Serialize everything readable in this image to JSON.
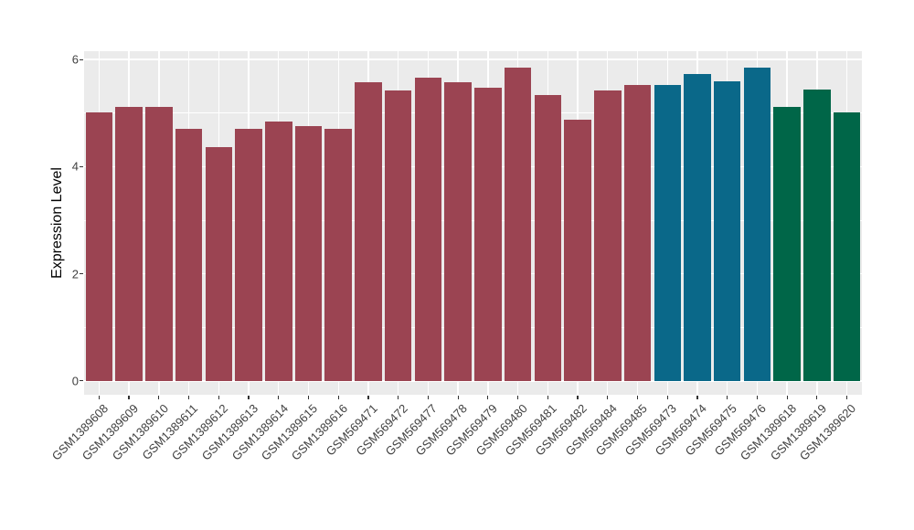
{
  "chart_data": {
    "type": "bar",
    "title": "",
    "xlabel": "",
    "ylabel": "Expression Level",
    "ylim": [
      0,
      6.16
    ],
    "yticks": [
      "0",
      "2",
      "4",
      "6"
    ],
    "ytick_values": [
      0,
      2,
      4,
      6
    ],
    "yticks_minor": [
      1,
      3,
      5
    ],
    "grid": true,
    "legend": false,
    "categories": [
      "GSM1389608",
      "GSM1389609",
      "GSM1389610",
      "GSM1389611",
      "GSM1389612",
      "GSM1389613",
      "GSM1389614",
      "GSM1389615",
      "GSM1389616",
      "GSM569471",
      "GSM569472",
      "GSM569477",
      "GSM569478",
      "GSM569479",
      "GSM569480",
      "GSM569481",
      "GSM569482",
      "GSM569484",
      "GSM569485",
      "GSM569473",
      "GSM569474",
      "GSM569475",
      "GSM569476",
      "GSM1389618",
      "GSM1389619",
      "GSM1389620"
    ],
    "values": [
      5.02,
      5.12,
      5.11,
      4.71,
      4.36,
      4.71,
      4.84,
      4.75,
      4.7,
      5.57,
      5.42,
      5.66,
      5.57,
      5.47,
      5.85,
      5.34,
      4.88,
      5.42,
      5.53,
      5.53,
      5.73,
      5.59,
      5.85,
      5.11,
      5.44,
      5.01
    ],
    "bar_colors": [
      "#9B4452",
      "#9B4452",
      "#9B4452",
      "#9B4452",
      "#9B4452",
      "#9B4452",
      "#9B4452",
      "#9B4452",
      "#9B4452",
      "#9B4452",
      "#9B4452",
      "#9B4452",
      "#9B4452",
      "#9B4452",
      "#9B4452",
      "#9B4452",
      "#9B4452",
      "#9B4452",
      "#9B4452",
      "#0A6889",
      "#0A6889",
      "#0A6889",
      "#0A6889",
      "#006648",
      "#006648",
      "#006648"
    ],
    "groups": [
      {
        "color": "#9B4452",
        "samples": [
          "GSM1389608",
          "GSM1389609",
          "GSM1389610",
          "GSM1389611",
          "GSM1389612",
          "GSM1389613",
          "GSM1389614",
          "GSM1389615",
          "GSM1389616",
          "GSM569471",
          "GSM569472",
          "GSM569477",
          "GSM569478",
          "GSM569479",
          "GSM569480",
          "GSM569481",
          "GSM569482",
          "GSM569484",
          "GSM569485"
        ]
      },
      {
        "color": "#0A6889",
        "samples": [
          "GSM569473",
          "GSM569474",
          "GSM569475",
          "GSM569476"
        ]
      },
      {
        "color": "#006648",
        "samples": [
          "GSM1389618",
          "GSM1389619",
          "GSM1389620"
        ]
      }
    ]
  },
  "colors": {
    "panel_background": "#EBEBEB",
    "gridline": "#FFFFFF",
    "axis_text": "#404040",
    "tick_mark": "#333333",
    "figure_background": "#FFFFFF"
  }
}
